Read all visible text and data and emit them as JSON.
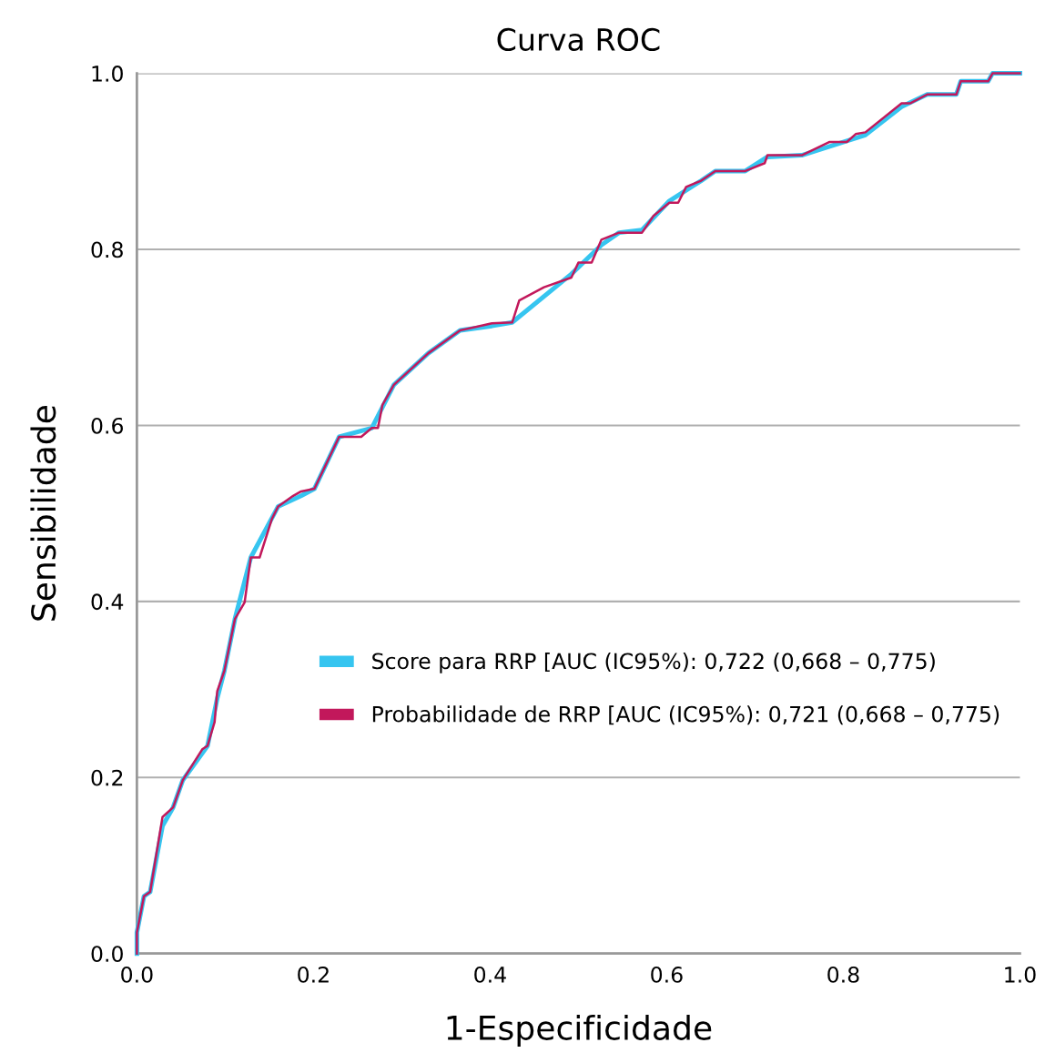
{
  "chart_data": {
    "type": "line",
    "title": "Curva ROC",
    "xlabel": "1-Especificidade",
    "ylabel": "Sensibilidade",
    "xlim": [
      0,
      1
    ],
    "ylim": [
      0,
      1
    ],
    "xticks": [
      {
        "value": 0,
        "label": "0.0"
      },
      0.2,
      0.4,
      0.6,
      0.8,
      {
        "value": 1,
        "label": "1.0"
      }
    ],
    "yticks": [
      {
        "value": 0,
        "label": "0.0"
      },
      0.2,
      0.4,
      0.6,
      0.8,
      {
        "value": 1,
        "label": "1.0"
      }
    ],
    "grid": "y",
    "legend": "right",
    "marker": "none",
    "line_style": "solid",
    "series": [
      {
        "name": "Score para RRP [AUC (IC95%): 0,722 (0,668 – 0,775)",
        "color": "#36c5f0",
        "x": [
          0,
          0,
          0.008,
          0.015,
          0.029,
          0.041,
          0.052,
          0.08,
          0.091,
          0.099,
          0.111,
          0.129,
          0.16,
          0.186,
          0.201,
          0.229,
          0.266,
          0.291,
          0.33,
          0.366,
          0.402,
          0.425,
          0.492,
          0.526,
          0.546,
          0.572,
          0.603,
          0.639,
          0.655,
          0.689,
          0.714,
          0.753,
          0.825,
          0.866,
          0.895,
          0.928,
          0.933,
          0.964,
          0.969,
          1.0
        ],
        "values": [
          0,
          0.024,
          0.065,
          0.07,
          0.145,
          0.166,
          0.197,
          0.236,
          0.29,
          0.321,
          0.38,
          0.45,
          0.508,
          0.52,
          0.528,
          0.587,
          0.597,
          0.646,
          0.682,
          0.708,
          0.713,
          0.717,
          0.772,
          0.805,
          0.819,
          0.822,
          0.855,
          0.878,
          0.889,
          0.889,
          0.905,
          0.907,
          0.93,
          0.962,
          0.976,
          0.976,
          0.991,
          0.991,
          1.0,
          1.0
        ]
      },
      {
        "name": "Probabilidade de RRP [AUC (IC95%): 0,721 (0,668 – 0,775)",
        "color": "#c2185b",
        "x": [
          0,
          0,
          0.008,
          0.015,
          0.029,
          0.041,
          0.052,
          0.074,
          0.08,
          0.088,
          0.091,
          0.099,
          0.111,
          0.122,
          0.129,
          0.139,
          0.153,
          0.16,
          0.177,
          0.186,
          0.201,
          0.229,
          0.254,
          0.266,
          0.273,
          0.278,
          0.291,
          0.33,
          0.366,
          0.402,
          0.425,
          0.433,
          0.461,
          0.492,
          0.5,
          0.515,
          0.526,
          0.546,
          0.572,
          0.585,
          0.603,
          0.613,
          0.622,
          0.639,
          0.655,
          0.689,
          0.711,
          0.714,
          0.753,
          0.784,
          0.804,
          0.814,
          0.825,
          0.866,
          0.876,
          0.895,
          0.928,
          0.933,
          0.964,
          0.969,
          1.0
        ],
        "values": [
          0,
          0.024,
          0.065,
          0.07,
          0.155,
          0.166,
          0.197,
          0.232,
          0.236,
          0.263,
          0.298,
          0.321,
          0.38,
          0.399,
          0.45,
          0.45,
          0.494,
          0.508,
          0.52,
          0.525,
          0.528,
          0.587,
          0.587,
          0.597,
          0.597,
          0.623,
          0.646,
          0.682,
          0.708,
          0.716,
          0.717,
          0.742,
          0.757,
          0.768,
          0.785,
          0.785,
          0.811,
          0.819,
          0.819,
          0.838,
          0.853,
          0.853,
          0.871,
          0.878,
          0.889,
          0.889,
          0.898,
          0.907,
          0.907,
          0.922,
          0.922,
          0.931,
          0.933,
          0.966,
          0.966,
          0.976,
          0.976,
          0.991,
          0.991,
          1.0,
          1.0
        ]
      }
    ]
  }
}
